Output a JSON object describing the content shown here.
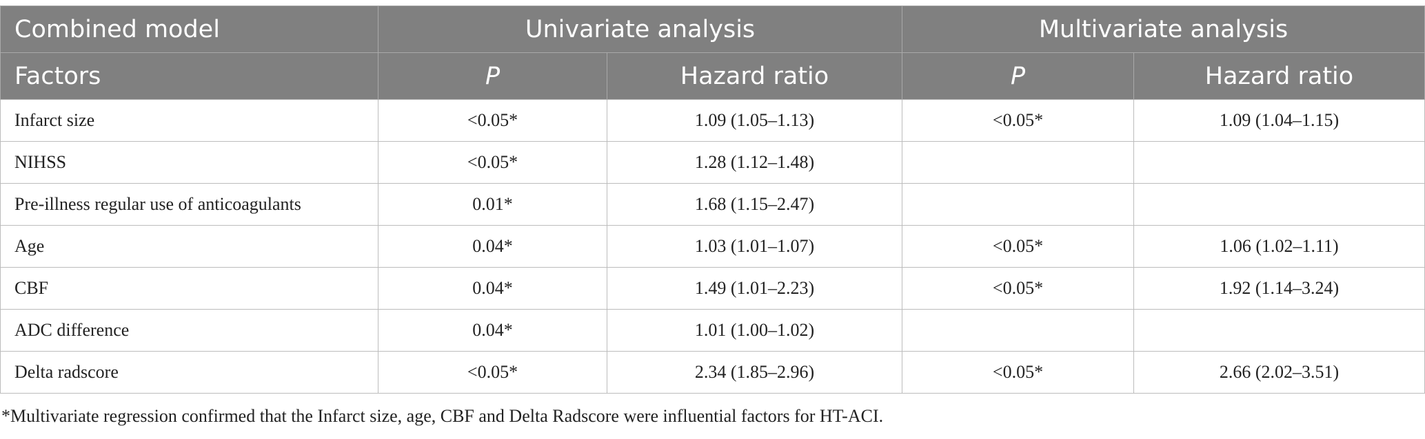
{
  "table": {
    "header_top": {
      "col1": "Combined model",
      "group1": "Univariate analysis",
      "group2": "Multivariate analysis"
    },
    "header_sub": {
      "col1": "Factors",
      "p1": "P",
      "hr1": "Hazard ratio",
      "p2": "P",
      "hr2": "Hazard ratio"
    },
    "rows": [
      {
        "factor": "Infarct size",
        "uni_p": "<0.05*",
        "uni_hr": "1.09 (1.05–1.13)",
        "multi_p": "<0.05*",
        "multi_hr": "1.09 (1.04–1.15)"
      },
      {
        "factor": "NIHSS",
        "uni_p": "<0.05*",
        "uni_hr": "1.28 (1.12–1.48)",
        "multi_p": "",
        "multi_hr": ""
      },
      {
        "factor": "Pre-illness regular use of anticoagulants",
        "uni_p": "0.01*",
        "uni_hr": "1.68 (1.15–2.47)",
        "multi_p": "",
        "multi_hr": ""
      },
      {
        "factor": "Age",
        "uni_p": "0.04*",
        "uni_hr": "1.03 (1.01–1.07)",
        "multi_p": "<0.05*",
        "multi_hr": "1.06 (1.02–1.11)"
      },
      {
        "factor": "CBF",
        "uni_p": "0.04*",
        "uni_hr": "1.49 (1.01–2.23)",
        "multi_p": "<0.05*",
        "multi_hr": "1.92 (1.14–3.24)"
      },
      {
        "factor": "ADC difference",
        "uni_p": "0.04*",
        "uni_hr": "1.01 (1.00–1.02)",
        "multi_p": "",
        "multi_hr": ""
      },
      {
        "factor": "Delta radscore",
        "uni_p": "<0.05*",
        "uni_hr": "2.34 (1.85–2.96)",
        "multi_p": "<0.05*",
        "multi_hr": "2.66 (2.02–3.51)"
      }
    ]
  },
  "footnote": "*Multivariate regression confirmed that the Infarct size, age, CBF and Delta Radscore were influential factors for HT-ACI.",
  "colors": {
    "header_bg": "#808080",
    "header_text": "#ffffff",
    "body_text": "#222222",
    "grid": "#bcbcbc"
  }
}
